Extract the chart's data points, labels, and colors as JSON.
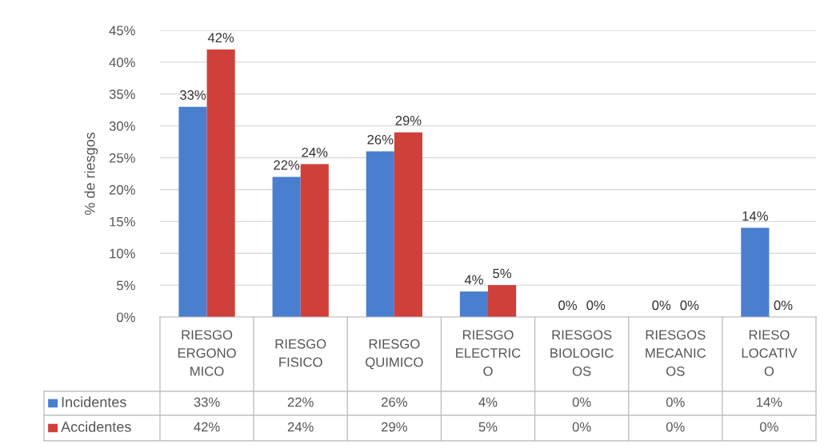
{
  "chart_data": {
    "type": "bar",
    "ylabel": "% de riesgos",
    "categories": [
      "RIESGO\nERGONO\nMICO",
      "RIESGO\nFISICO",
      "RIESGO\nQUIMICO",
      "RIESGO\nELECTRIC\nO",
      "RIESGOS\nBIOLOGIC\nOS",
      "RIESGOS\nMECANIC\nOS",
      "RIESO\nLOCATIV\nO"
    ],
    "series": [
      {
        "name": "Incidentes",
        "color": "#4a7fcf",
        "values": [
          33,
          22,
          26,
          4,
          0,
          0,
          14
        ]
      },
      {
        "name": "Accidentes",
        "color": "#d0403b",
        "values": [
          42,
          24,
          29,
          5,
          0,
          0,
          0
        ]
      }
    ],
    "ylim": [
      0,
      45
    ],
    "yticks": [
      {
        "value": 0,
        "label": "0%"
      },
      {
        "value": 5,
        "label": "5%"
      },
      {
        "value": 10,
        "label": "10%"
      },
      {
        "value": 15,
        "label": "15%"
      },
      {
        "value": 20,
        "label": "20%"
      },
      {
        "value": 25,
        "label": "25%"
      },
      {
        "value": 30,
        "label": "30%"
      },
      {
        "value": 35,
        "label": "35%"
      },
      {
        "value": 40,
        "label": "40%"
      },
      {
        "value": 45,
        "label": "45%"
      }
    ],
    "value_labels": [
      [
        "33%",
        "22%",
        "26%",
        "4%",
        "0%",
        "0%",
        "14%"
      ],
      [
        "42%",
        "24%",
        "29%",
        "5%",
        "0%",
        "0%",
        "0%"
      ]
    ],
    "grid": "y",
    "legend": "bottom"
  }
}
